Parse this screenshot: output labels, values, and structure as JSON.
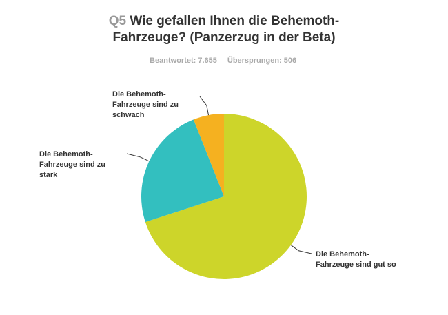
{
  "chart_data": {
    "type": "pie",
    "title_prefix": "Q5",
    "title_lines": [
      "Wie gefallen Ihnen die Behemoth-",
      "Fahrzeuge? (Panzerzug in der Beta)"
    ],
    "subtitle": [
      "Beantwortet: 7.655",
      "Übersprungen: 506"
    ],
    "categories": [
      "Die Behemoth-Fahrzeuge sind gut so",
      "Die Behemoth-Fahrzeuge sind zu stark",
      "Die Behemoth-Fahrzeuge sind zu schwach"
    ],
    "values": [
      70,
      24,
      6
    ],
    "colors": [
      "#cdd52a",
      "#33bfbf",
      "#f5b120"
    ]
  }
}
